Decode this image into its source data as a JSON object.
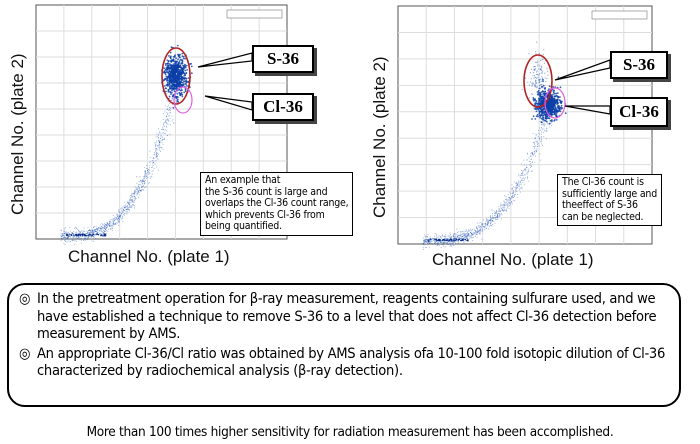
{
  "panels": [
    {
      "y_label": "Channel No. (plate 2)",
      "x_label": "Channel No. (plate 1)",
      "tags": {
        "s36": "S-36",
        "cl36": "Cl-36"
      },
      "note": "An example that\nthe S-36 count is large and\noverlaps the Cl-36 count range,\nwhich prevents Cl-36 from\nbeing quantified.",
      "colors": {
        "points": "#1a4fb5",
        "s36_circle": "#b22222",
        "cl36_circle": "#e060e0"
      }
    },
    {
      "y_label": "Channel No. (plate 2)",
      "x_label": "Channel No. (plate 1)",
      "tags": {
        "s36": "S-36",
        "cl36": "Cl-36"
      },
      "note": "The Cl-36 count is\nsufficiently large and\ntheeffect of S-36\ncan be neglected.",
      "colors": {
        "points": "#1a4fb5",
        "s36_circle": "#b22222",
        "cl36_circle": "#e060e0"
      }
    }
  ],
  "summary": {
    "bullet_symbol": "◎",
    "items": [
      "In the pretreatment operation for β-ray measurement, reagents containing sulfurare used, and we have established a technique to remove S-36 to a level that does not affect Cl-36 detection before measurement by AMS.",
      "An appropriate Cl-36/Cl ratio was obtained by AMS analysis ofa 10-100 fold isotopic dilution of Cl-36 characterized by radiochemical analysis (β-ray detection)."
    ]
  },
  "footer": "More than 100 times higher sensitivity for radiation measurement has been accomplished."
}
